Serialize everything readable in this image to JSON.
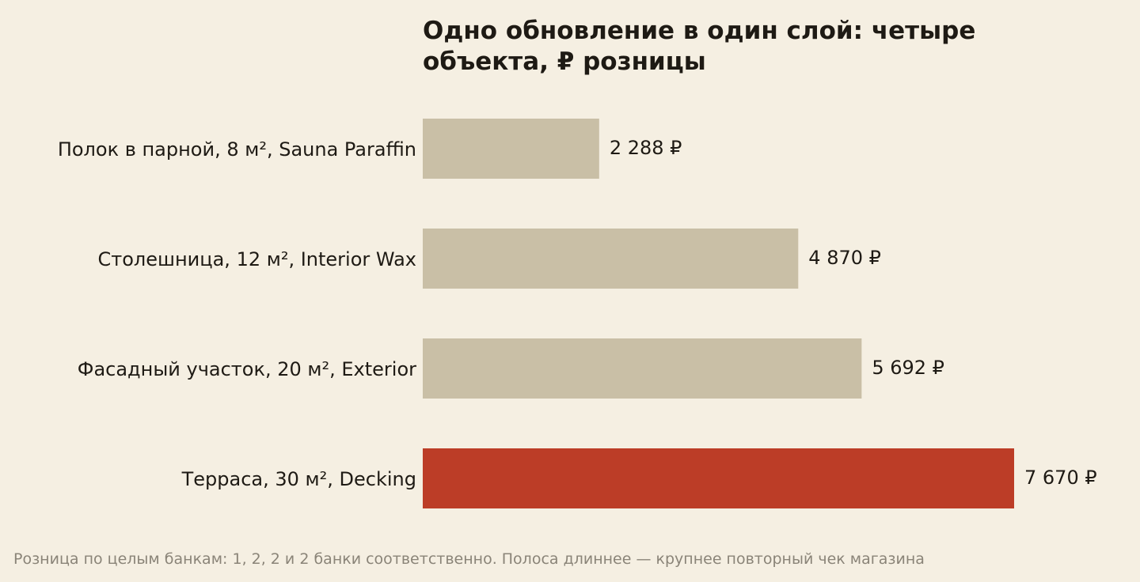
{
  "chart_data": {
    "type": "barh",
    "title": "Одно обновление в один слой: четыре объекта, ₽ розницы",
    "categories": [
      "Полок в парной, 8 м², Sauna Paraffin",
      "Столешница, 12 м², Interior Wax",
      "Фасадный участок, 20 м², Exterior",
      "Терраса, 30 м², Decking"
    ],
    "values": [
      2288,
      4870,
      5692,
      7670
    ],
    "value_labels": [
      "2 288 ₽",
      "4 870 ₽",
      "5 692 ₽",
      "7 670 ₽"
    ],
    "colors": [
      "#c9bfa6",
      "#c9bfa6",
      "#c9bfa6",
      "#bc3d27"
    ],
    "footnote": "Розница по целым банкам: 1, 2, 2 и 2 банки соответственно. Полоса длиннее — крупнее повторный чек магазина"
  }
}
